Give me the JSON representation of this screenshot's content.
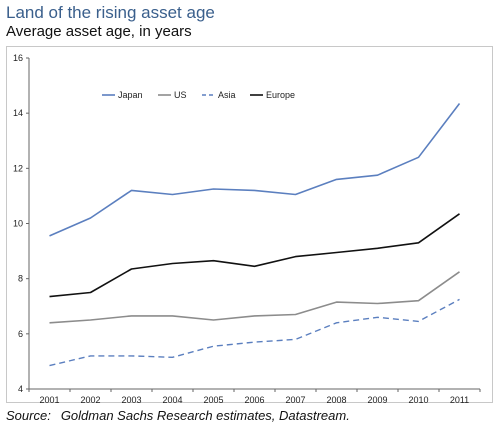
{
  "title": "Land of the rising asset age",
  "subtitle": "Average asset age, in years",
  "source": {
    "label": "Source:",
    "text": "Goldman Sachs Research estimates, Datastream."
  },
  "chart_data": {
    "type": "line",
    "x": [
      "2001",
      "2002",
      "2003",
      "2004",
      "2005",
      "2006",
      "2007",
      "2008",
      "2009",
      "2010",
      "2011"
    ],
    "ylim": [
      4,
      16
    ],
    "yticks": [
      4,
      6,
      8,
      10,
      12,
      14,
      16
    ],
    "grid": false,
    "legend_position": "top-left",
    "series": [
      {
        "name": "Japan",
        "color": "#5b7fbf",
        "dash": "solid",
        "width": 1.6,
        "values": [
          9.55,
          10.2,
          11.2,
          11.05,
          11.25,
          11.2,
          11.05,
          11.6,
          11.75,
          12.4,
          14.35
        ]
      },
      {
        "name": "US",
        "color": "#8c8c8c",
        "dash": "solid",
        "width": 1.6,
        "values": [
          6.4,
          6.5,
          6.65,
          6.65,
          6.5,
          6.65,
          6.7,
          7.15,
          7.1,
          7.2,
          8.25
        ]
      },
      {
        "name": "Asia",
        "color": "#5b7fbf",
        "dash": "dashed",
        "width": 1.4,
        "values": [
          4.85,
          5.2,
          5.2,
          5.15,
          5.55,
          5.7,
          5.8,
          6.4,
          6.6,
          6.45,
          7.25
        ]
      },
      {
        "name": "Europe",
        "color": "#111111",
        "dash": "solid",
        "width": 1.6,
        "values": [
          7.35,
          7.5,
          8.35,
          8.55,
          8.65,
          8.45,
          8.8,
          8.95,
          9.1,
          9.3,
          10.35
        ]
      }
    ]
  }
}
